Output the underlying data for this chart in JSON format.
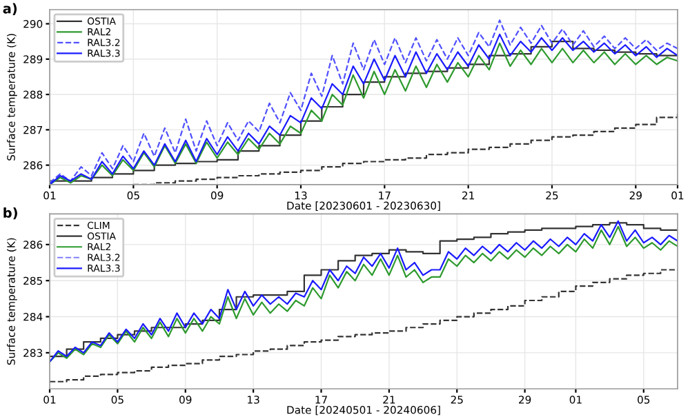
{
  "chart_data": [
    {
      "type": "line",
      "title": "a)",
      "xlabel": "Date [20230601 - 20230630]",
      "ylabel": "Surface temperature (K)",
      "xlim": [
        "2023-06-01",
        "2023-07-01"
      ],
      "ylim": [
        285.45,
        290.4
      ],
      "xticks": [
        {
          "value": "2023-06-01",
          "label": "01"
        },
        {
          "value": "2023-06-05",
          "label": "05"
        },
        {
          "value": "2023-06-09",
          "label": "09"
        },
        {
          "value": "2023-06-13",
          "label": "13"
        },
        {
          "value": "2023-06-17",
          "label": "17"
        },
        {
          "value": "2023-06-21",
          "label": "21"
        },
        {
          "value": "2023-06-25",
          "label": "25"
        },
        {
          "value": "2023-06-29",
          "label": "29"
        },
        {
          "value": "2023-07-01",
          "label": "01"
        }
      ],
      "yticks": [
        286,
        287,
        288,
        289,
        290
      ],
      "grid": true,
      "legend": "top left",
      "x": [
        "2023-06-01",
        "2023-06-01T12:00",
        "2023-06-02",
        "2023-06-02T12:00",
        "2023-06-03",
        "2023-06-03T12:00",
        "2023-06-04",
        "2023-06-04T12:00",
        "2023-06-05",
        "2023-06-05T12:00",
        "2023-06-06",
        "2023-06-06T12:00",
        "2023-06-07",
        "2023-06-07T12:00",
        "2023-06-08",
        "2023-06-08T12:00",
        "2023-06-09",
        "2023-06-09T12:00",
        "2023-06-10",
        "2023-06-10T12:00",
        "2023-06-11",
        "2023-06-11T12:00",
        "2023-06-12",
        "2023-06-12T12:00",
        "2023-06-13",
        "2023-06-13T12:00",
        "2023-06-14",
        "2023-06-14T12:00",
        "2023-06-15",
        "2023-06-15T12:00",
        "2023-06-16",
        "2023-06-16T12:00",
        "2023-06-17",
        "2023-06-17T12:00",
        "2023-06-18",
        "2023-06-18T12:00",
        "2023-06-19",
        "2023-06-19T12:00",
        "2023-06-20",
        "2023-06-20T12:00",
        "2023-06-21",
        "2023-06-21T12:00",
        "2023-06-22",
        "2023-06-22T12:00",
        "2023-06-23",
        "2023-06-23T12:00",
        "2023-06-24",
        "2023-06-24T12:00",
        "2023-06-25",
        "2023-06-25T12:00",
        "2023-06-26",
        "2023-06-26T12:00",
        "2023-06-27",
        "2023-06-27T12:00",
        "2023-06-28",
        "2023-06-28T12:00",
        "2023-06-29",
        "2023-06-29T12:00",
        "2023-06-30",
        "2023-06-30T12:00",
        "2023-07-01"
      ],
      "series": [
        {
          "type": "step",
          "color": "#333333",
          "line_style": "dashed",
          "x": [
            "2023-06-05",
            "2023-06-06",
            "2023-06-07",
            "2023-06-08",
            "2023-06-09",
            "2023-06-10",
            "2023-06-11",
            "2023-06-12",
            "2023-06-13",
            "2023-06-14",
            "2023-06-15",
            "2023-06-16",
            "2023-06-17",
            "2023-06-18",
            "2023-06-19",
            "2023-06-20",
            "2023-06-21",
            "2023-06-22",
            "2023-06-23",
            "2023-06-24",
            "2023-06-25",
            "2023-06-26",
            "2023-06-27",
            "2023-06-28",
            "2023-06-29",
            "2023-06-30",
            "2023-07-01"
          ],
          "values": [
            285.45,
            285.5,
            285.55,
            285.6,
            285.65,
            285.7,
            285.75,
            285.8,
            285.85,
            285.95,
            286.05,
            286.1,
            286.15,
            286.2,
            286.3,
            286.35,
            286.45,
            286.5,
            286.6,
            286.7,
            286.8,
            286.85,
            286.95,
            287.05,
            287.15,
            287.35,
            287.5
          ]
        },
        {
          "type": "step",
          "name": "OSTIA",
          "color": "#333333",
          "line_style": "solid",
          "x": [
            "2023-06-01",
            "2023-06-02",
            "2023-06-03",
            "2023-06-04",
            "2023-06-05",
            "2023-06-06",
            "2023-06-07",
            "2023-06-08",
            "2023-06-09",
            "2023-06-10",
            "2023-06-11",
            "2023-06-12",
            "2023-06-13",
            "2023-06-14",
            "2023-06-15",
            "2023-06-16",
            "2023-06-17",
            "2023-06-18",
            "2023-06-19",
            "2023-06-20",
            "2023-06-21",
            "2023-06-22",
            "2023-06-23",
            "2023-06-24",
            "2023-06-25",
            "2023-06-26",
            "2023-06-27",
            "2023-06-28",
            "2023-06-29",
            "2023-06-30",
            "2023-07-01"
          ],
          "values": [
            285.55,
            285.55,
            285.65,
            285.75,
            285.85,
            286.0,
            286.05,
            286.1,
            286.15,
            286.4,
            286.55,
            286.85,
            287.25,
            287.65,
            288.0,
            288.35,
            288.5,
            288.6,
            288.65,
            288.75,
            288.85,
            289.1,
            289.15,
            289.35,
            289.5,
            289.3,
            289.25,
            289.2,
            289.15,
            289.1,
            289.1
          ]
        },
        {
          "name": "RAL2",
          "color": "#2e9a2e",
          "line_style": "solid",
          "values": [
            285.45,
            285.65,
            285.5,
            285.7,
            285.6,
            286.0,
            285.7,
            286.15,
            285.85,
            286.35,
            285.95,
            286.55,
            286.05,
            286.6,
            286.05,
            286.65,
            286.2,
            286.65,
            286.3,
            286.75,
            286.45,
            286.9,
            286.6,
            287.1,
            286.9,
            287.55,
            287.25,
            288.0,
            287.7,
            288.55,
            287.9,
            288.65,
            288.0,
            288.7,
            288.1,
            288.8,
            288.2,
            288.85,
            288.35,
            288.9,
            288.5,
            289.1,
            288.7,
            289.45,
            288.8,
            289.25,
            288.85,
            289.3,
            288.9,
            289.3,
            288.9,
            289.25,
            288.9,
            289.2,
            288.85,
            289.15,
            288.85,
            289.1,
            288.85,
            289.05,
            288.95
          ]
        },
        {
          "name": "RAL3.2",
          "color": "#5050ff",
          "line_style": "dashed",
          "values": [
            285.5,
            285.75,
            285.55,
            285.95,
            285.7,
            286.35,
            285.9,
            286.55,
            286.1,
            286.9,
            286.25,
            287.05,
            286.35,
            287.3,
            286.4,
            287.25,
            286.55,
            287.2,
            286.7,
            287.25,
            286.95,
            287.75,
            287.2,
            288.05,
            287.55,
            288.6,
            287.95,
            289.1,
            288.3,
            289.45,
            288.7,
            289.55,
            288.85,
            289.6,
            288.9,
            289.6,
            288.95,
            289.55,
            289.0,
            289.6,
            289.1,
            289.75,
            289.35,
            290.1,
            289.4,
            289.9,
            289.45,
            289.95,
            289.45,
            289.85,
            289.4,
            289.8,
            289.35,
            289.65,
            289.3,
            289.6,
            289.3,
            289.55,
            289.25,
            289.45,
            289.3
          ]
        },
        {
          "name": "RAL3.3",
          "color": "#1a1aff",
          "line_style": "solid",
          "values": [
            285.45,
            285.7,
            285.55,
            285.75,
            285.6,
            286.1,
            285.75,
            286.25,
            285.9,
            286.4,
            286.0,
            286.6,
            286.1,
            286.7,
            286.1,
            286.75,
            286.3,
            286.8,
            286.4,
            286.9,
            286.6,
            287.1,
            286.85,
            287.4,
            287.2,
            287.9,
            287.6,
            288.3,
            288.0,
            288.8,
            288.3,
            289.0,
            288.4,
            289.1,
            288.5,
            289.2,
            288.6,
            289.15,
            288.7,
            289.2,
            288.8,
            289.4,
            289.0,
            289.7,
            289.1,
            289.5,
            289.2,
            289.6,
            289.25,
            289.6,
            289.25,
            289.5,
            289.2,
            289.45,
            289.15,
            289.4,
            289.1,
            289.35,
            289.05,
            289.3,
            289.1
          ]
        }
      ]
    },
    {
      "type": "line",
      "title": "b)",
      "xlabel": "Date [20240501 - 20240606]",
      "ylabel": "Surface temperature (K)",
      "xlim": [
        "2024-05-01",
        "2024-06-07"
      ],
      "ylim": [
        282.0,
        286.85
      ],
      "xticks": [
        {
          "value": "2024-05-01",
          "label": "01"
        },
        {
          "value": "2024-05-05",
          "label": "05"
        },
        {
          "value": "2024-05-09",
          "label": "09"
        },
        {
          "value": "2024-05-13",
          "label": "13"
        },
        {
          "value": "2024-05-17",
          "label": "17"
        },
        {
          "value": "2024-05-21",
          "label": "21"
        },
        {
          "value": "2024-05-25",
          "label": "25"
        },
        {
          "value": "2024-05-29",
          "label": "29"
        },
        {
          "value": "2024-06-01",
          "label": "01"
        },
        {
          "value": "2024-06-05",
          "label": "05"
        }
      ],
      "yticks": [
        283,
        284,
        285,
        286
      ],
      "grid": true,
      "legend": "top left",
      "x": [
        "2024-05-01",
        "2024-05-01T12:00",
        "2024-05-02",
        "2024-05-02T12:00",
        "2024-05-03",
        "2024-05-03T12:00",
        "2024-05-04",
        "2024-05-04T12:00",
        "2024-05-05",
        "2024-05-05T12:00",
        "2024-05-06",
        "2024-05-06T12:00",
        "2024-05-07",
        "2024-05-07T12:00",
        "2024-05-08",
        "2024-05-08T12:00",
        "2024-05-09",
        "2024-05-09T12:00",
        "2024-05-10",
        "2024-05-10T12:00",
        "2024-05-11",
        "2024-05-11T12:00",
        "2024-05-12",
        "2024-05-12T12:00",
        "2024-05-13",
        "2024-05-13T12:00",
        "2024-05-14",
        "2024-05-14T12:00",
        "2024-05-15",
        "2024-05-15T12:00",
        "2024-05-16",
        "2024-05-16T12:00",
        "2024-05-17",
        "2024-05-17T12:00",
        "2024-05-18",
        "2024-05-18T12:00",
        "2024-05-19",
        "2024-05-19T12:00",
        "2024-05-20",
        "2024-05-20T12:00",
        "2024-05-21",
        "2024-05-21T12:00",
        "2024-05-22",
        "2024-05-22T12:00",
        "2024-05-23",
        "2024-05-23T12:00",
        "2024-05-24",
        "2024-05-24T12:00",
        "2024-05-25",
        "2024-05-25T12:00",
        "2024-05-26",
        "2024-05-26T12:00",
        "2024-05-27",
        "2024-05-27T12:00",
        "2024-05-28",
        "2024-05-28T12:00",
        "2024-05-29",
        "2024-05-29T12:00",
        "2024-05-30",
        "2024-05-30T12:00",
        "2024-05-31",
        "2024-05-31T12:00",
        "2024-06-01",
        "2024-06-01T12:00",
        "2024-06-02",
        "2024-06-02T12:00",
        "2024-06-03",
        "2024-06-03T12:00",
        "2024-06-04",
        "2024-06-04T12:00",
        "2024-06-05",
        "2024-06-05T12:00",
        "2024-06-06",
        "2024-06-06T12:00",
        "2024-06-07"
      ],
      "series": [
        {
          "type": "step",
          "name": "CLIM",
          "color": "#333333",
          "line_style": "dashed",
          "x": [
            "2024-05-01",
            "2024-05-02",
            "2024-05-03",
            "2024-05-04",
            "2024-05-05",
            "2024-05-06",
            "2024-05-07",
            "2024-05-08",
            "2024-05-09",
            "2024-05-10",
            "2024-05-11",
            "2024-05-12",
            "2024-05-13",
            "2024-05-14",
            "2024-05-15",
            "2024-05-16",
            "2024-05-17",
            "2024-05-18",
            "2024-05-19",
            "2024-05-20",
            "2024-05-21",
            "2024-05-22",
            "2024-05-23",
            "2024-05-24",
            "2024-05-25",
            "2024-05-26",
            "2024-05-27",
            "2024-05-28",
            "2024-05-29",
            "2024-05-30",
            "2024-05-31",
            "2024-06-01",
            "2024-06-02",
            "2024-06-03",
            "2024-06-04",
            "2024-06-05",
            "2024-06-06",
            "2024-06-07"
          ],
          "values": [
            282.2,
            282.25,
            282.35,
            282.4,
            282.45,
            282.5,
            282.6,
            282.65,
            282.7,
            282.8,
            282.9,
            282.95,
            283.05,
            283.1,
            283.2,
            283.3,
            283.35,
            283.45,
            283.5,
            283.55,
            283.6,
            283.7,
            283.8,
            283.9,
            284.0,
            284.1,
            284.2,
            284.3,
            284.45,
            284.55,
            284.7,
            284.85,
            284.95,
            285.05,
            285.15,
            285.2,
            285.3,
            285.3
          ]
        },
        {
          "type": "step",
          "name": "OSTIA",
          "color": "#333333",
          "line_style": "solid",
          "x": [
            "2024-05-01",
            "2024-05-02",
            "2024-05-03",
            "2024-05-04",
            "2024-05-05",
            "2024-05-06",
            "2024-05-07",
            "2024-05-08",
            "2024-05-09",
            "2024-05-10",
            "2024-05-11",
            "2024-05-12",
            "2024-05-13",
            "2024-05-14",
            "2024-05-15",
            "2024-05-16",
            "2024-05-17",
            "2024-05-18",
            "2024-05-19",
            "2024-05-20",
            "2024-05-21",
            "2024-05-22",
            "2024-05-23",
            "2024-05-24",
            "2024-05-25",
            "2024-05-26",
            "2024-05-27",
            "2024-05-28",
            "2024-05-29",
            "2024-05-30",
            "2024-05-31",
            "2024-06-01",
            "2024-06-02",
            "2024-06-03",
            "2024-06-04",
            "2024-06-05",
            "2024-06-06",
            "2024-06-07"
          ],
          "values": [
            282.9,
            283.1,
            283.3,
            283.4,
            283.5,
            283.6,
            283.7,
            283.7,
            283.8,
            283.9,
            284.2,
            284.55,
            284.6,
            284.6,
            284.7,
            285.15,
            285.3,
            285.55,
            285.7,
            285.75,
            285.85,
            285.8,
            285.75,
            286.1,
            286.15,
            286.2,
            286.3,
            286.35,
            286.4,
            286.45,
            286.45,
            286.5,
            286.55,
            286.6,
            286.55,
            286.45,
            286.4,
            286.4
          ]
        },
        {
          "name": "RAL2",
          "color": "#2e9a2e",
          "line_style": "solid",
          "values": [
            282.75,
            283.0,
            282.85,
            283.1,
            282.95,
            283.25,
            283.15,
            283.5,
            283.25,
            283.6,
            283.3,
            283.7,
            283.4,
            283.85,
            283.45,
            283.95,
            283.55,
            283.95,
            283.6,
            284.0,
            283.8,
            284.55,
            283.95,
            284.5,
            284.05,
            284.4,
            284.1,
            284.35,
            284.15,
            284.45,
            284.3,
            284.8,
            284.5,
            285.15,
            284.8,
            285.25,
            285.0,
            285.45,
            285.15,
            285.6,
            285.15,
            285.7,
            285.1,
            285.3,
            284.95,
            285.1,
            285.1,
            285.6,
            285.4,
            285.7,
            285.5,
            285.75,
            285.55,
            285.8,
            285.6,
            285.85,
            285.65,
            285.9,
            285.7,
            285.95,
            285.75,
            286.0,
            285.8,
            286.15,
            285.9,
            286.4,
            286.0,
            286.5,
            285.95,
            286.2,
            285.9,
            286.05,
            285.85,
            286.1,
            285.95
          ]
        },
        {
          "name": "RAL3.2",
          "color": "#8080ff",
          "line_style": "dashed",
          "values": [
            null,
            null,
            null,
            null,
            null,
            null,
            null,
            null,
            null,
            null,
            null,
            null,
            null,
            null,
            null,
            null,
            null,
            null,
            null,
            null,
            null,
            null,
            null,
            null,
            null,
            null,
            null,
            null,
            null,
            null,
            null,
            null,
            null,
            null,
            null,
            null,
            null,
            null,
            null,
            null,
            null,
            null,
            null,
            null,
            null,
            null,
            null,
            null,
            null,
            null,
            null,
            null,
            null,
            null,
            null,
            null,
            null,
            null,
            null,
            null,
            null,
            null,
            null,
            null,
            null,
            null,
            null,
            null,
            null,
            null,
            null,
            null,
            null,
            null,
            null
          ]
        },
        {
          "name": "RAL3.3",
          "color": "#1a1aff",
          "line_style": "solid",
          "values": [
            282.75,
            283.05,
            282.9,
            283.15,
            283.0,
            283.3,
            283.2,
            283.55,
            283.3,
            283.65,
            283.4,
            283.8,
            283.5,
            283.95,
            283.6,
            284.1,
            283.7,
            284.1,
            283.8,
            284.2,
            283.95,
            284.75,
            284.2,
            284.7,
            284.3,
            284.6,
            284.35,
            284.55,
            284.35,
            284.65,
            284.55,
            285.0,
            284.75,
            285.3,
            285.0,
            285.4,
            285.2,
            285.65,
            285.4,
            285.75,
            285.35,
            285.9,
            285.3,
            285.5,
            285.15,
            285.3,
            285.3,
            285.8,
            285.6,
            285.9,
            285.7,
            285.95,
            285.75,
            286.0,
            285.8,
            286.05,
            285.85,
            286.1,
            285.9,
            286.15,
            285.95,
            286.2,
            286.0,
            286.3,
            286.1,
            286.55,
            286.2,
            286.65,
            286.1,
            286.4,
            286.05,
            286.2,
            286.0,
            286.25,
            286.1
          ]
        }
      ]
    }
  ]
}
